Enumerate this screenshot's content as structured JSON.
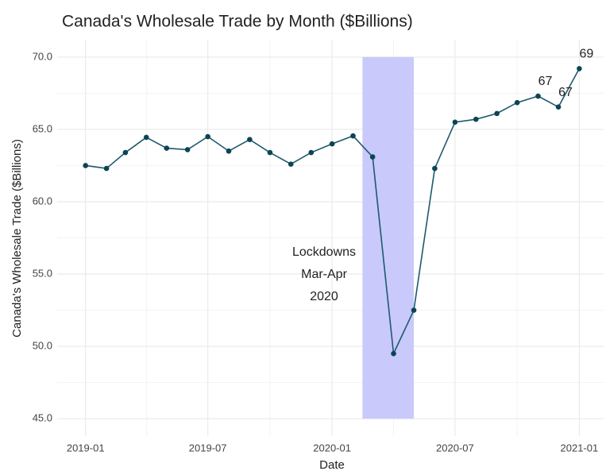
{
  "chart_data": {
    "type": "line",
    "title": "Canada's Wholesale Trade by Month ($Billions)",
    "x_label": "Date",
    "y_label": "Canada's Wholesale Trade ($Billions)",
    "x": [
      "2019-01",
      "2019-02",
      "2019-03",
      "2019-04",
      "2019-05",
      "2019-06",
      "2019-07",
      "2019-08",
      "2019-09",
      "2019-10",
      "2019-11",
      "2019-12",
      "2020-01",
      "2020-02",
      "2020-03",
      "2020-04",
      "2020-05",
      "2020-06",
      "2020-07",
      "2020-08",
      "2020-09",
      "2020-10",
      "2020-11",
      "2020-12",
      "2021-01"
    ],
    "values": [
      62.5,
      62.3,
      63.4,
      64.45,
      63.7,
      63.6,
      64.5,
      63.5,
      64.3,
      63.4,
      62.6,
      63.4,
      64.0,
      64.55,
      63.1,
      49.5,
      52.5,
      62.3,
      65.5,
      65.7,
      66.1,
      66.85,
      67.3,
      66.55,
      69.2
    ],
    "value_labels": [
      null,
      null,
      null,
      null,
      null,
      null,
      null,
      null,
      null,
      null,
      null,
      null,
      null,
      null,
      null,
      null,
      null,
      null,
      null,
      null,
      null,
      null,
      "67",
      "67",
      "69"
    ],
    "color": "#1d5a6c",
    "marker_color": "#0c4455",
    "xlim": [
      "2018-11-20",
      "2021-02-06"
    ],
    "xticks": [
      "2019-01",
      "2019-07",
      "2020-01",
      "2020-07",
      "2021-01"
    ],
    "ylim": [
      43.8,
      71.2
    ],
    "yticks": [
      {
        "value": 45,
        "label": "45.0"
      },
      {
        "value": 50,
        "label": "50.0"
      },
      {
        "value": 55,
        "label": "55.0"
      },
      {
        "value": 60,
        "label": "60.0"
      },
      {
        "value": 65,
        "label": "65.0"
      },
      {
        "value": 70,
        "label": "70.0"
      }
    ],
    "grid": true,
    "shade": {
      "x": [
        "2020-02-15",
        "2020-05-01"
      ],
      "y": [
        45,
        70
      ],
      "color": "#c9c9fb"
    },
    "annotation": {
      "lines": [
        "Lockdowns",
        "Mar-Apr",
        "2020"
      ]
    }
  }
}
